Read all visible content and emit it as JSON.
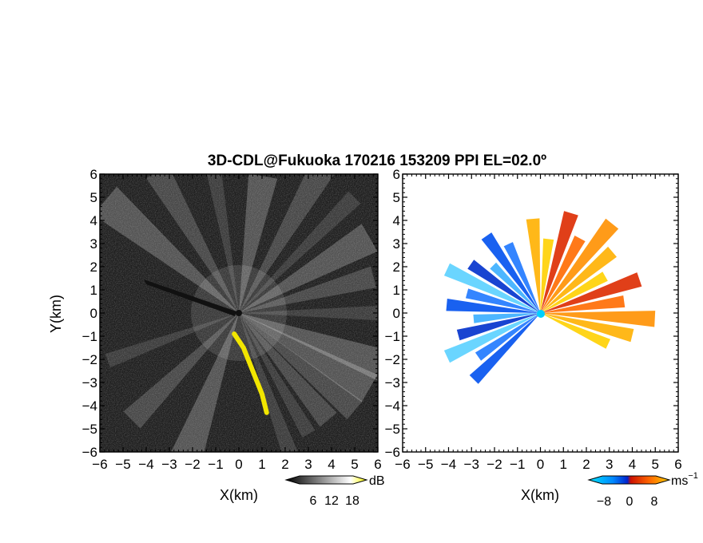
{
  "title": "3D-CDL@Fukuoka 170216 153209 PPI EL=02.0º",
  "chart_data": [
    {
      "type": "heatmap",
      "panel": "reflectivity",
      "xlabel": "X(km)",
      "ylabel": "Y(km)",
      "xlim": [
        -6,
        6
      ],
      "ylim": [
        -6,
        6
      ],
      "xticks": [
        "−6",
        "−5",
        "−4",
        "−3",
        "−2",
        "−1",
        "0",
        "1",
        "2",
        "3",
        "4",
        "5",
        "6"
      ],
      "yticks": [
        "−6",
        "−5",
        "−4",
        "−3",
        "−2",
        "−1",
        "0",
        "1",
        "2",
        "3",
        "4",
        "5",
        "6"
      ],
      "colorbar": {
        "unit": "dB",
        "ticks": [
          "6",
          "12",
          "18"
        ],
        "colors": [
          "#000000",
          "#ffffff",
          "#ffff00"
        ]
      },
      "features": [
        {
          "name": "radial-beams",
          "azimuths_deg": [
            -60,
            -40,
            -20,
            0,
            15,
            30,
            45,
            60,
            80,
            100,
            120,
            140,
            200,
            225,
            250,
            290,
            310,
            330
          ]
        },
        {
          "name": "yellow-echo",
          "points_km": [
            [
              -0.2,
              -0.9
            ],
            [
              0.2,
              -1.5
            ],
            [
              0.6,
              -2.5
            ],
            [
              1.0,
              -3.5
            ],
            [
              1.2,
              -4.3
            ]
          ]
        }
      ]
    },
    {
      "type": "heatmap",
      "panel": "doppler-velocity",
      "xlabel": "X(km)",
      "xlim": [
        -6,
        6
      ],
      "ylim": [
        -6,
        6
      ],
      "xticks": [
        "−6",
        "−5",
        "−4",
        "−3",
        "−2",
        "−1",
        "0",
        "1",
        "2",
        "3",
        "4",
        "5",
        "6"
      ],
      "yticks": [
        "−6",
        "−5",
        "−4",
        "−3",
        "−2",
        "−1",
        "0",
        "1",
        "2",
        "3",
        "4",
        "5",
        "6"
      ],
      "colorbar": {
        "unit": "ms",
        "unit_exp": "−1",
        "ticks": [
          "−8",
          "0",
          "8"
        ],
        "colors": [
          "#00e5ff",
          "#0088ff",
          "#0022cc",
          "#cc1100",
          "#ff6600",
          "#ffd000"
        ]
      },
      "features": [
        {
          "name": "receding-lobe",
          "sign": "positive",
          "azimuth_range_deg": [
            -30,
            100
          ],
          "max_range_km": 5
        },
        {
          "name": "approaching-lobe",
          "sign": "negative",
          "azimuth_range_deg": [
            110,
            230
          ],
          "max_range_km": 4.5
        }
      ]
    }
  ]
}
